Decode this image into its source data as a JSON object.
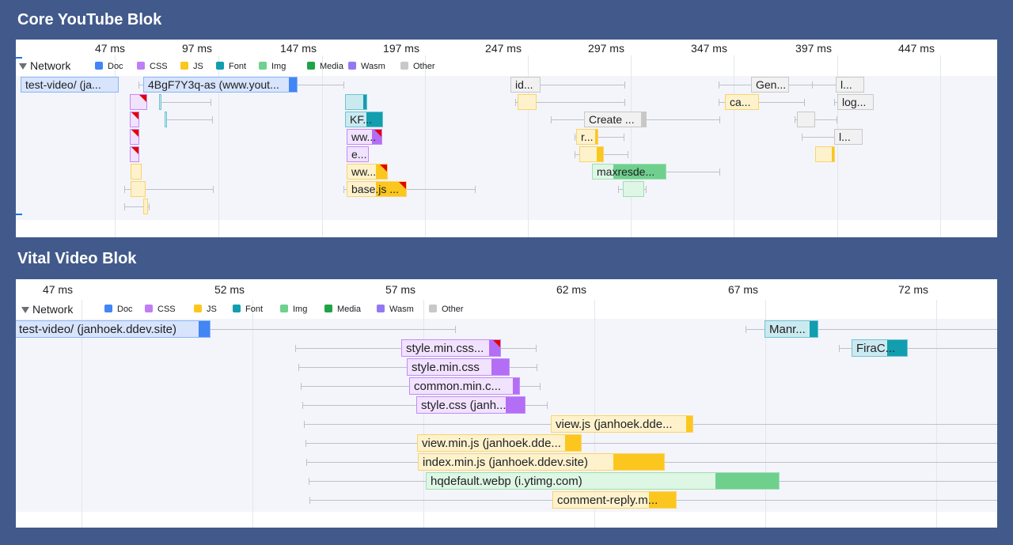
{
  "sections": [
    {
      "title": "Core YouTube Blok",
      "ticks": [
        "47 ms",
        "97 ms",
        "147 ms",
        "197 ms",
        "247 ms",
        "297 ms",
        "347 ms",
        "397 ms",
        "447 ms"
      ],
      "network_label": "Network",
      "legend": [
        {
          "label": "Doc",
          "color": "#4285f4"
        },
        {
          "label": "CSS",
          "color": "#c07ef6"
        },
        {
          "label": "JS",
          "color": "#fbc71e"
        },
        {
          "label": "Font",
          "color": "#129eaf"
        },
        {
          "label": "Img",
          "color": "#70d08e"
        },
        {
          "label": "Media",
          "color": "#1ea446"
        },
        {
          "label": "Wasm",
          "color": "#9478f3"
        },
        {
          "label": "Other",
          "color": "#c8c8c8"
        }
      ],
      "requests": [
        {
          "label": "test-video/ (ja...",
          "type": "doc"
        },
        {
          "label": "4BgF7Y3q-as (www.yout...",
          "type": "doc"
        },
        {
          "label": "",
          "type": "css"
        },
        {
          "label": "",
          "type": "css"
        },
        {
          "label": "",
          "type": "css"
        },
        {
          "label": "",
          "type": "css"
        },
        {
          "label": "",
          "type": "js"
        },
        {
          "label": "",
          "type": "js"
        },
        {
          "label": "",
          "type": "js"
        },
        {
          "label": "",
          "type": "font"
        },
        {
          "label": "",
          "type": "font"
        },
        {
          "label": "",
          "type": "font"
        },
        {
          "label": "KF...",
          "type": "font"
        },
        {
          "label": "ww...",
          "type": "css"
        },
        {
          "label": "e...",
          "type": "css"
        },
        {
          "label": "ww...",
          "type": "js"
        },
        {
          "label": "base.js ...",
          "type": "js"
        },
        {
          "label": "id...",
          "type": "other"
        },
        {
          "label": "",
          "type": "js"
        },
        {
          "label": "Create ...",
          "type": "other"
        },
        {
          "label": "r...",
          "type": "js"
        },
        {
          "label": "",
          "type": "js"
        },
        {
          "label": "maxresde...",
          "type": "img"
        },
        {
          "label": "",
          "type": "img"
        },
        {
          "label": "Gen...",
          "type": "other"
        },
        {
          "label": "ca...",
          "type": "js"
        },
        {
          "label": "",
          "type": "other"
        },
        {
          "label": "l...",
          "type": "other"
        },
        {
          "label": "log...",
          "type": "other"
        },
        {
          "label": "l...",
          "type": "other"
        },
        {
          "label": "",
          "type": "js"
        }
      ]
    },
    {
      "title": "Vital Video Blok",
      "ticks": [
        "47 ms",
        "52 ms",
        "57 ms",
        "62 ms",
        "67 ms",
        "72 ms"
      ],
      "network_label": "Network",
      "legend": [
        {
          "label": "Doc",
          "color": "#4285f4"
        },
        {
          "label": "CSS",
          "color": "#c07ef6"
        },
        {
          "label": "JS",
          "color": "#fbc71e"
        },
        {
          "label": "Font",
          "color": "#129eaf"
        },
        {
          "label": "Img",
          "color": "#70d08e"
        },
        {
          "label": "Media",
          "color": "#1ea446"
        },
        {
          "label": "Wasm",
          "color": "#9478f3"
        },
        {
          "label": "Other",
          "color": "#c8c8c8"
        }
      ],
      "requests": [
        {
          "label": "test-video/ (janhoek.ddev.site)",
          "type": "doc"
        },
        {
          "label": "Manr...",
          "type": "font"
        },
        {
          "label": "FiraC...",
          "type": "font"
        },
        {
          "label": "style.min.css...",
          "type": "css"
        },
        {
          "label": "style.min.css",
          "type": "css"
        },
        {
          "label": "common.min.c...",
          "type": "css"
        },
        {
          "label": "style.css (janh...",
          "type": "css"
        },
        {
          "label": "view.js (janhoek.dde...",
          "type": "js"
        },
        {
          "label": "view.min.js (janhoek.dde...",
          "type": "js"
        },
        {
          "label": "index.min.js (janhoek.ddev.site)",
          "type": "js"
        },
        {
          "label": "hqdefault.webp (i.ytimg.com)",
          "type": "img"
        },
        {
          "label": "comment-reply.m...",
          "type": "js"
        }
      ]
    }
  ]
}
